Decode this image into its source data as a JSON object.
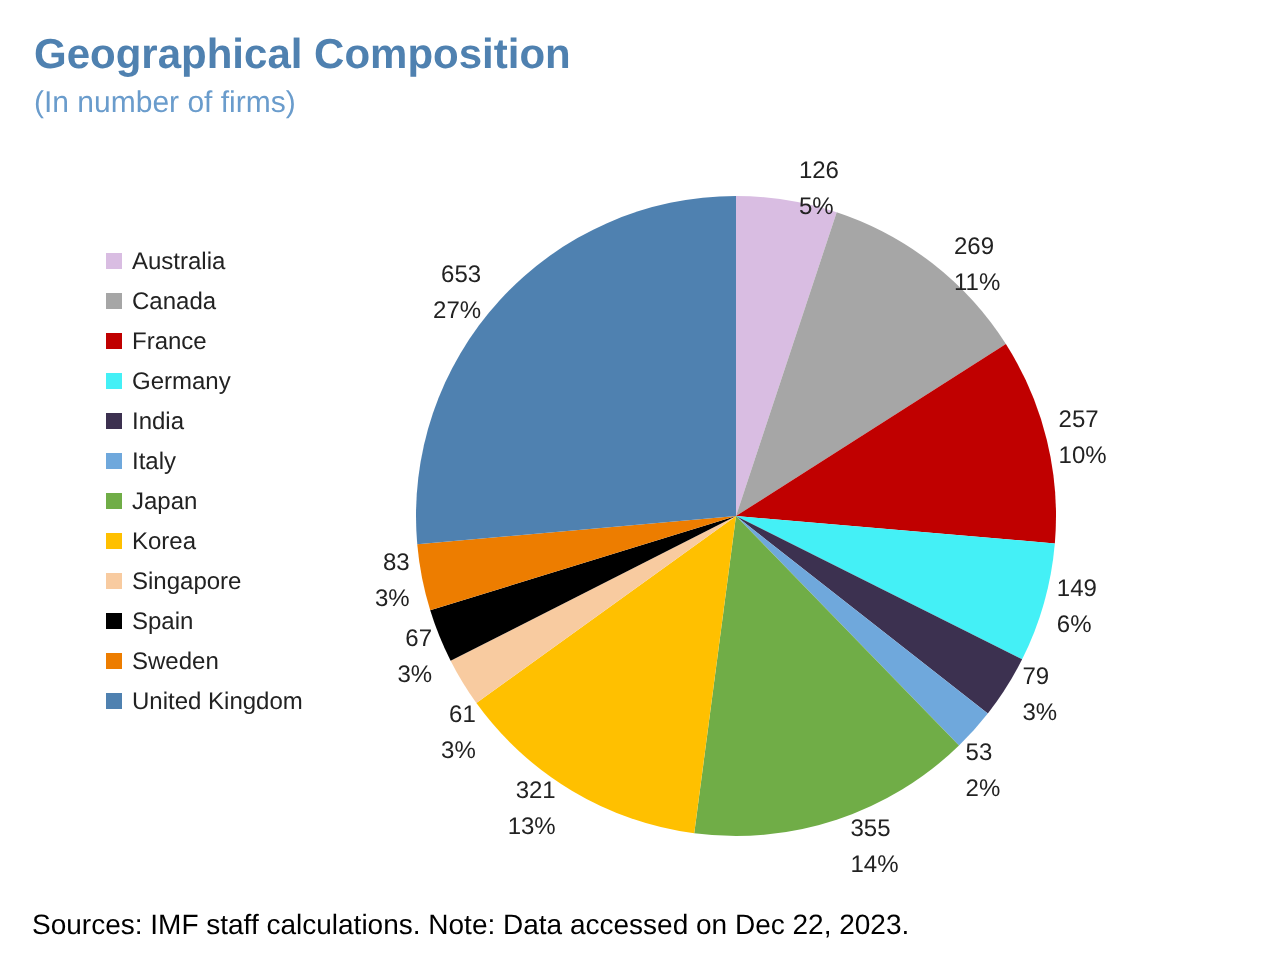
{
  "chart_data": {
    "type": "pie",
    "title": "Geographical Composition",
    "subtitle": "(In number of firms)",
    "categories": [
      "Australia",
      "Canada",
      "France",
      "Germany",
      "India",
      "Italy",
      "Japan",
      "Korea",
      "Singapore",
      "Spain",
      "Sweden",
      "United Kingdom"
    ],
    "values": [
      126,
      269,
      257,
      149,
      79,
      53,
      355,
      321,
      61,
      67,
      83,
      653
    ],
    "value_labels": [
      "126\n5%",
      "269\n11%",
      "257\n10%",
      "149\n6%",
      "79\n3%",
      "53\n2%",
      "355\n14%",
      "321\n13%",
      "61\n3%",
      "67\n3%",
      "83\n3%",
      "653\n27%"
    ],
    "colors": [
      "#d9bde2",
      "#a6a6a6",
      "#c00000",
      "#44f0f6",
      "#3c3150",
      "#6fa8dc",
      "#70ad47",
      "#ffc000",
      "#f8cba0",
      "#000000",
      "#ed7d00",
      "#4f81b0"
    ],
    "legend": "left",
    "annotations": [
      "Sources: IMF staff calculations. Note: Data accessed on Dec 22, 2023."
    ]
  }
}
